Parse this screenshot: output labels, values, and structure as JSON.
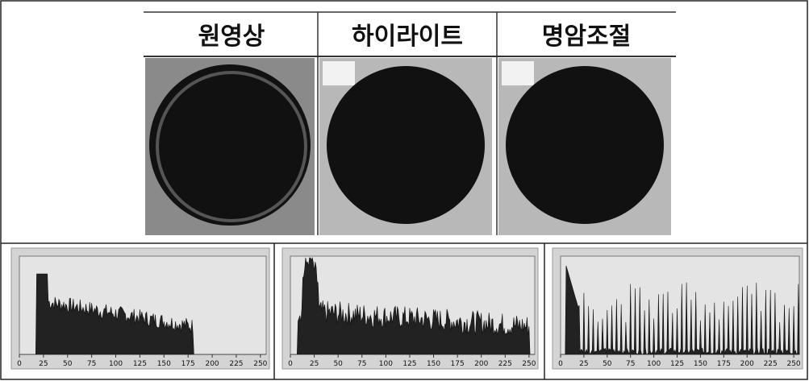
{
  "figure": {
    "columns": [
      {
        "title": "원영상"
      },
      {
        "title": "하이라이트"
      },
      {
        "title": "명암조절"
      }
    ],
    "histograms": [
      {
        "xticks": [
          "0",
          "25",
          "50",
          "75",
          "100",
          "125",
          "150",
          "175",
          "200",
          "225",
          "250"
        ]
      },
      {
        "xticks": [
          "0",
          "25",
          "50",
          "75",
          "100",
          "125",
          "150",
          "175",
          "200",
          "225",
          "250"
        ]
      },
      {
        "xticks": [
          "0",
          "25",
          "50",
          "75",
          "100",
          "125",
          "150",
          "175",
          "200",
          "225",
          "250"
        ]
      }
    ]
  }
}
